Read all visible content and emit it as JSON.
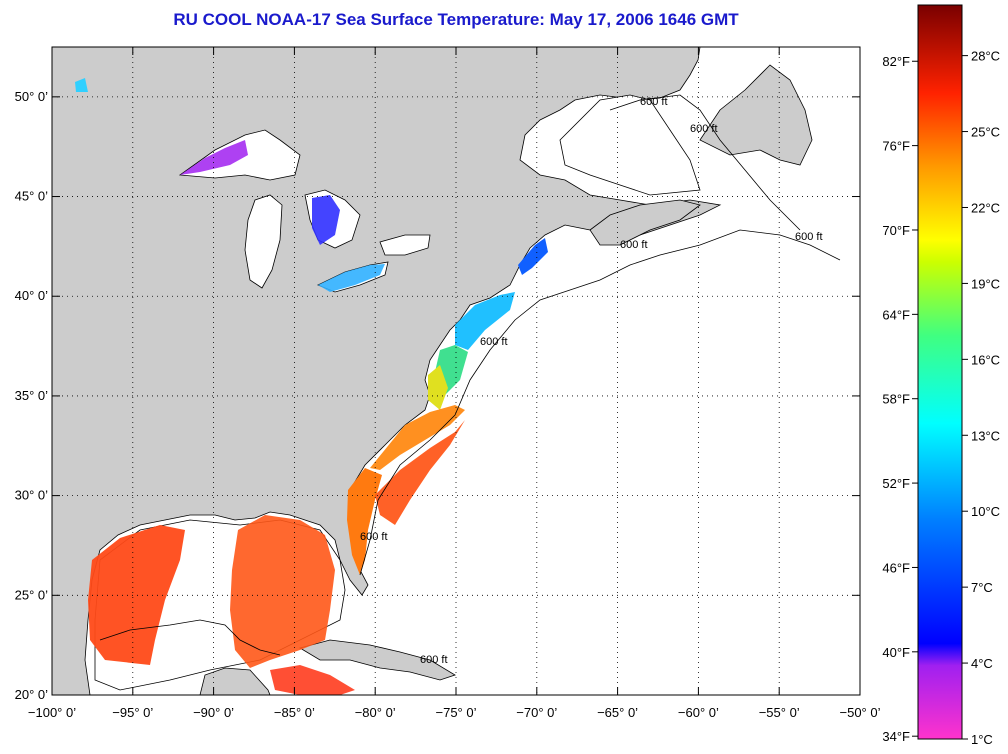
{
  "title": "RU COOL  NOAA-17  Sea Surface Temperature:  May 17, 2006 1646 GMT",
  "map": {
    "lon_range": [
      -100,
      -50
    ],
    "lat_range": [
      20,
      52.5
    ],
    "lon_ticks": [
      {
        "value": -100,
        "label": "−100° 0’"
      },
      {
        "value": -95,
        "label": "−95° 0’"
      },
      {
        "value": -90,
        "label": "−90° 0’"
      },
      {
        "value": -85,
        "label": "−85° 0’"
      },
      {
        "value": -80,
        "label": "−80° 0’"
      },
      {
        "value": -75,
        "label": "−75° 0’"
      },
      {
        "value": -70,
        "label": "−70° 0’"
      },
      {
        "value": -65,
        "label": "−65° 0’"
      },
      {
        "value": -60,
        "label": "−60° 0’"
      },
      {
        "value": -55,
        "label": "−55° 0’"
      },
      {
        "value": -50,
        "label": "−50° 0’"
      }
    ],
    "lat_ticks": [
      {
        "value": 20,
        "label": "20° 0’"
      },
      {
        "value": 25,
        "label": "25° 0’"
      },
      {
        "value": 30,
        "label": "30° 0’"
      },
      {
        "value": 35,
        "label": "35° 0’"
      },
      {
        "value": 40,
        "label": "40° 0’"
      },
      {
        "value": 45,
        "label": "45° 0’"
      },
      {
        "value": 50,
        "label": "50° 0’"
      }
    ],
    "grid": "dotted",
    "land_color": "#cccccc",
    "water_color": "#ffffff",
    "contour_labels": [
      "600 ft",
      "600 ft",
      "600 ft",
      "600 ft",
      "600 ft",
      "600 ft",
      "600 ft"
    ]
  },
  "colorbar": {
    "range_c": [
      1,
      30
    ],
    "celsius_ticks": [
      "28°C",
      "25°C",
      "22°C",
      "19°C",
      "16°C",
      "13°C",
      "10°C",
      "7°C",
      "4°C",
      "1°C"
    ],
    "fahrenheit_ticks": [
      "82°F",
      "76°F",
      "70°F",
      "64°F",
      "58°F",
      "52°F",
      "46°F",
      "40°F",
      "34°F"
    ],
    "colors": [
      "#ff2ad4",
      "#a020f0",
      "#0000ff",
      "#0080ff",
      "#00ffff",
      "#00ff80",
      "#80ff00",
      "#ffff00",
      "#ff8000",
      "#ff0000",
      "#800000"
    ]
  }
}
